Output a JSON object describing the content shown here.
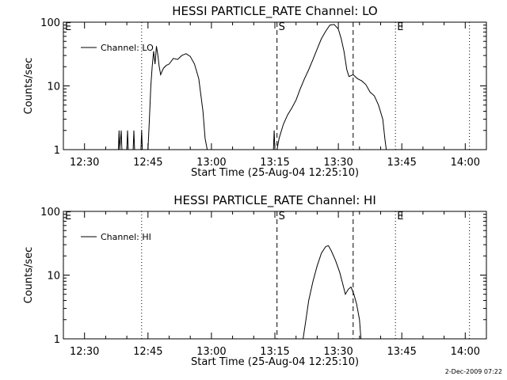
{
  "timestamp": "2-Dec-2009 07:22",
  "chart_data": [
    {
      "type": "line",
      "title": "HESSI PARTICLE_RATE Channel: LO",
      "xlabel": "Start Time (25-Aug-04 12:25:10)",
      "ylabel": "Counts/sec",
      "yscale": "log",
      "ylim": [
        1,
        100
      ],
      "ytick_labels": [
        "1",
        "10",
        "100"
      ],
      "xlim": [
        "12:25",
        "14:05"
      ],
      "xtick_labels": [
        "12:30",
        "12:45",
        "13:00",
        "13:15",
        "13:30",
        "13:45",
        "14:00"
      ],
      "legend": {
        "placement": "top-left",
        "label": "Channel: LO"
      },
      "markers": [
        {
          "time": "12:43:30",
          "style": "dotted",
          "label": ""
        },
        {
          "time": "13:15:30",
          "style": "dashed",
          "label": "S"
        },
        {
          "time": "13:33:30",
          "style": "dashed",
          "label": ""
        },
        {
          "time": "13:43:30",
          "style": "dotted",
          "label": "E"
        },
        {
          "time": "14:01:00",
          "style": "dotted",
          "label": ""
        }
      ],
      "corner_label": "E",
      "series": [
        {
          "name": "Channel: LO",
          "points": [
            [
              "12:38:00",
              1
            ],
            [
              "12:38:10",
              2
            ],
            [
              "12:38:20",
              1
            ],
            [
              "12:38:40",
              2
            ],
            [
              "12:38:50",
              1
            ],
            [
              "12:40:00",
              1
            ],
            [
              "12:40:10",
              2
            ],
            [
              "12:40:20",
              1
            ],
            [
              "12:41:30",
              1
            ],
            [
              "12:41:40",
              2
            ],
            [
              "12:41:50",
              1
            ],
            [
              "12:43:20",
              1
            ],
            [
              "12:43:30",
              2
            ],
            [
              "12:43:40",
              1
            ],
            [
              "12:45:00",
              1
            ],
            [
              "12:45:20",
              3
            ],
            [
              "12:45:40",
              10
            ],
            [
              "12:46:00",
              20
            ],
            [
              "12:46:20",
              35
            ],
            [
              "12:46:40",
              22
            ],
            [
              "12:47:00",
              42
            ],
            [
              "12:47:20",
              30
            ],
            [
              "12:47:40",
              20
            ],
            [
              "12:48:00",
              15
            ],
            [
              "12:48:20",
              17
            ],
            [
              "12:48:40",
              19
            ],
            [
              "12:49:20",
              21
            ],
            [
              "12:50:00",
              22
            ],
            [
              "12:51:00",
              27
            ],
            [
              "12:52:00",
              26
            ],
            [
              "12:53:00",
              30
            ],
            [
              "12:54:00",
              32
            ],
            [
              "12:55:00",
              29
            ],
            [
              "12:56:00",
              22
            ],
            [
              "12:57:00",
              13
            ],
            [
              "12:58:00",
              4
            ],
            [
              "12:58:30",
              1.5
            ],
            [
              "12:59:00",
              1
            ],
            [
              "13:14:40",
              1
            ],
            [
              "13:14:50",
              2
            ],
            [
              "13:15:00",
              1
            ],
            [
              "13:15:30",
              1
            ],
            [
              "13:16:00",
              1.5
            ],
            [
              "13:17:00",
              2.5
            ],
            [
              "13:18:00",
              3.5
            ],
            [
              "13:19:00",
              4.5
            ],
            [
              "13:20:00",
              6
            ],
            [
              "13:21:00",
              9
            ],
            [
              "13:22:00",
              13
            ],
            [
              "13:23:00",
              18
            ],
            [
              "13:24:00",
              26
            ],
            [
              "13:25:00",
              38
            ],
            [
              "13:26:00",
              55
            ],
            [
              "13:27:00",
              72
            ],
            [
              "13:28:00",
              90
            ],
            [
              "13:29:00",
              92
            ],
            [
              "13:30:00",
              78
            ],
            [
              "13:30:40",
              55
            ],
            [
              "13:31:20",
              35
            ],
            [
              "13:32:00",
              18
            ],
            [
              "13:32:30",
              14
            ],
            [
              "13:33:30",
              15
            ],
            [
              "13:34:30",
              13
            ],
            [
              "13:35:30",
              12
            ],
            [
              "13:36:30",
              10.5
            ],
            [
              "13:37:30",
              8
            ],
            [
              "13:38:30",
              7
            ],
            [
              "13:39:30",
              5
            ],
            [
              "13:40:30",
              3
            ],
            [
              "13:41:00",
              1.5
            ],
            [
              "13:41:20",
              1
            ]
          ]
        }
      ]
    },
    {
      "type": "line",
      "title": "HESSI PARTICLE_RATE Channel: HI",
      "xlabel": "Start Time (25-Aug-04 12:25:10)",
      "ylabel": "Counts/sec",
      "yscale": "log",
      "ylim": [
        1,
        100
      ],
      "ytick_labels": [
        "1",
        "10",
        "100"
      ],
      "xlim": [
        "12:25",
        "14:05"
      ],
      "xtick_labels": [
        "12:30",
        "12:45",
        "13:00",
        "13:15",
        "13:30",
        "13:45",
        "14:00"
      ],
      "legend": {
        "placement": "top-left",
        "label": "Channel: HI"
      },
      "markers": [
        {
          "time": "12:43:30",
          "style": "dotted",
          "label": ""
        },
        {
          "time": "13:15:30",
          "style": "dashed",
          "label": "S"
        },
        {
          "time": "13:33:30",
          "style": "dashed",
          "label": ""
        },
        {
          "time": "13:43:30",
          "style": "dotted",
          "label": "E"
        },
        {
          "time": "14:01:00",
          "style": "dotted",
          "label": ""
        }
      ],
      "corner_label": "E",
      "series": [
        {
          "name": "Channel: HI",
          "points": [
            [
              "13:21:40",
              1
            ],
            [
              "13:22:20",
              2
            ],
            [
              "13:23:00",
              4
            ],
            [
              "13:24:00",
              8
            ],
            [
              "13:25:00",
              14
            ],
            [
              "13:26:00",
              22
            ],
            [
              "13:27:00",
              28
            ],
            [
              "13:27:40",
              29
            ],
            [
              "13:28:20",
              24
            ],
            [
              "13:29:20",
              17
            ],
            [
              "13:30:20",
              11
            ],
            [
              "13:31:00",
              7.5
            ],
            [
              "13:31:40",
              5
            ],
            [
              "13:32:20",
              6
            ],
            [
              "13:33:00",
              6.5
            ],
            [
              "13:33:40",
              5
            ],
            [
              "13:34:20",
              3.5
            ],
            [
              "13:35:00",
              2
            ],
            [
              "13:35:20",
              1
            ]
          ]
        }
      ]
    }
  ]
}
